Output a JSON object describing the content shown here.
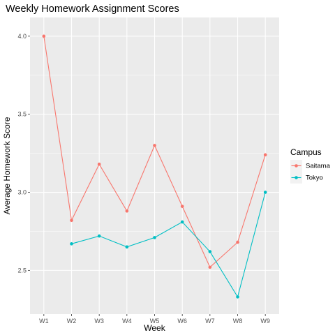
{
  "chart_data": {
    "type": "line",
    "title": "Weekly Homework Assignment Scores",
    "xlabel": "Week",
    "ylabel": "Average Homework Score",
    "categories": [
      "W1",
      "W2",
      "W3",
      "W4",
      "W5",
      "W6",
      "W7",
      "W8",
      "W9"
    ],
    "ylim": [
      2.22,
      4.12
    ],
    "yticks": [
      2.5,
      3.0,
      3.5,
      4.0
    ],
    "ytick_labels": [
      "2.5",
      "3.0",
      "3.5",
      "4.0"
    ],
    "grid": true,
    "legend": {
      "title": "Campus",
      "placement": "right"
    },
    "series": [
      {
        "name": "Saitama",
        "color": "#F8766D",
        "values": [
          4.0,
          2.82,
          3.18,
          2.88,
          3.3,
          2.91,
          2.52,
          2.68,
          3.24
        ]
      },
      {
        "name": "Tokyo",
        "color": "#00BFC4",
        "values": [
          null,
          2.67,
          2.72,
          2.65,
          2.71,
          2.81,
          2.62,
          2.33,
          3.0
        ]
      }
    ],
    "panel_color": "#EBEBEB",
    "grid_color": "#FFFFFF"
  }
}
